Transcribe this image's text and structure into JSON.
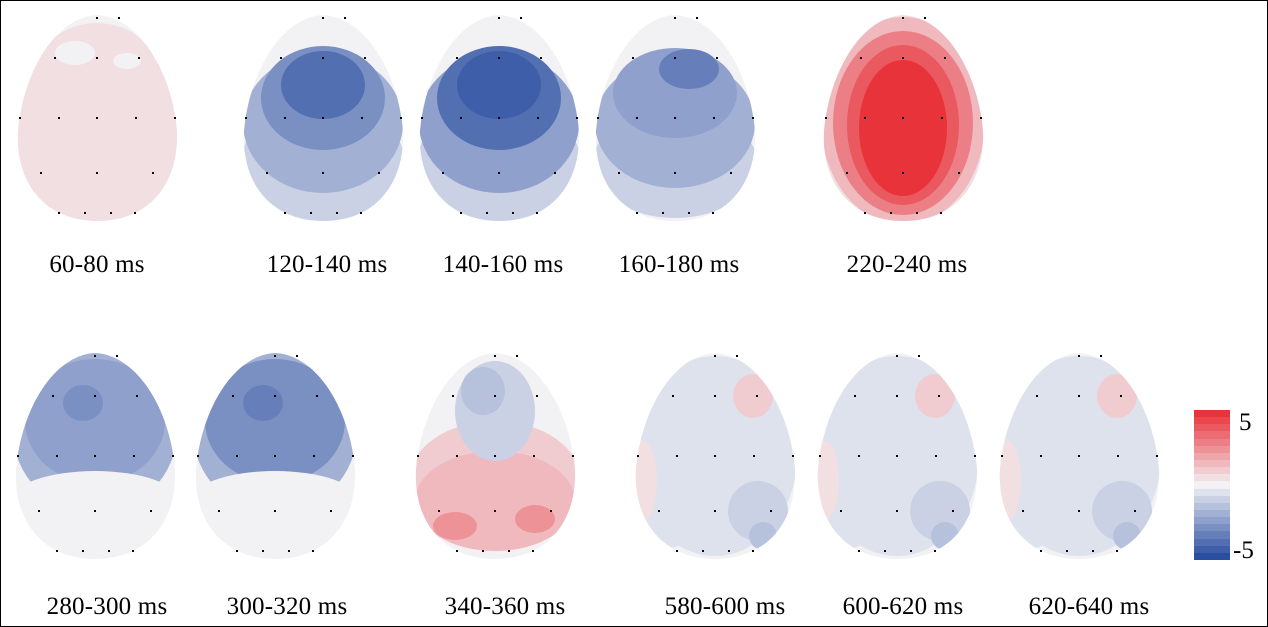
{
  "figure": {
    "maps": [
      {
        "label": "60-80 ms",
        "peak": 0.12,
        "pattern": "uniform-pos"
      },
      {
        "label": "120-140 ms",
        "peak": -0.78,
        "pattern": "frontal-neg"
      },
      {
        "label": "140-160 ms",
        "peak": -0.95,
        "pattern": "frontal-neg"
      },
      {
        "label": "160-180 ms",
        "peak": -0.72,
        "pattern": "frontal-neg-weak"
      },
      {
        "label": "220-240 ms",
        "peak": 0.95,
        "pattern": "global-pos"
      },
      {
        "label": "280-300 ms",
        "peak": -0.65,
        "pattern": "frontal-neg-occ-pos"
      },
      {
        "label": "300-320 ms",
        "peak": -0.7,
        "pattern": "frontal-neg-occ-pos"
      },
      {
        "label": "340-360 ms",
        "peak": 0.45,
        "pattern": "posterior-pos"
      },
      {
        "label": "580-600 ms",
        "peak": -0.3,
        "pattern": "faint-mixed"
      },
      {
        "label": "600-620 ms",
        "peak": -0.3,
        "pattern": "faint-mixed"
      },
      {
        "label": "620-640 ms",
        "peak": -0.3,
        "pattern": "faint-mixed"
      }
    ]
  },
  "colorbar": {
    "max_label": "5",
    "min_label": "-5",
    "max_color": "#e8333a",
    "min_color": "#2a4ea0",
    "mid_color": "#f2f2f5"
  }
}
